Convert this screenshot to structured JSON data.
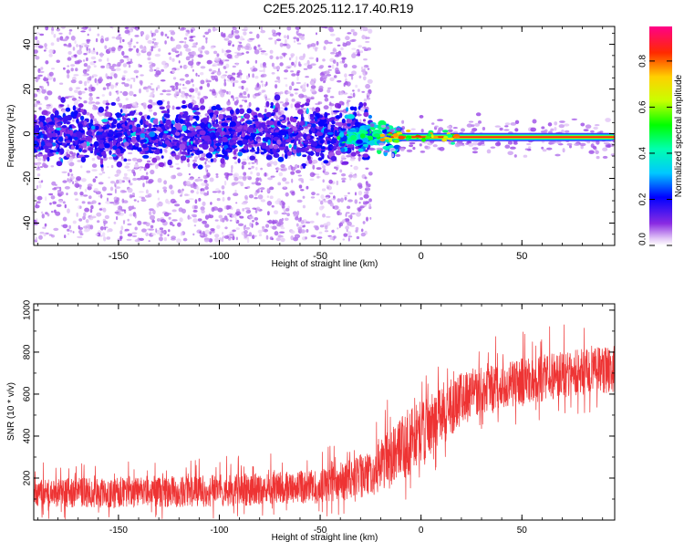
{
  "title": "C2E5.2025.112.17.40.R19",
  "chart_data": [
    {
      "type": "heatmap",
      "xlabel": "Height of straight line (km)",
      "ylabel": "Frequency (Hz)",
      "xlim": [
        -192,
        96
      ],
      "ylim": [
        -50,
        48
      ],
      "xticks": [
        -150,
        -100,
        -50,
        0,
        50
      ],
      "yticks": [
        -40,
        -20,
        0,
        20,
        40
      ],
      "colorbar": {
        "label": "Normalized spectral amplitude",
        "range": [
          0,
          0.95
        ],
        "ticks": [
          0.0,
          0.2,
          0.4,
          0.6,
          0.8
        ],
        "colormap": "rainbow"
      },
      "features": {
        "scatter_region_x": [
          -192,
          -25
        ],
        "scatter_freq_halfwidth_hz": 48,
        "core_band_halfwidth_hz": 10,
        "tonal_line_x": [
          -25,
          96
        ],
        "tonal_line_freq_hz": -1.5,
        "tonal_line_peak_amplitude": 0.85
      }
    },
    {
      "type": "line",
      "xlabel": "Height of straight line (km)",
      "ylabel": "SNR (10 * v/v)",
      "xlim": [
        -192,
        96
      ],
      "ylim": [
        0,
        1030
      ],
      "xticks": [
        -150,
        -100,
        -50,
        0,
        50
      ],
      "yticks": [
        200,
        400,
        600,
        800,
        1000
      ],
      "series": [
        {
          "color": "#ee3333",
          "trend": [
            {
              "x": -192,
              "mean": 130,
              "spread": 70
            },
            {
              "x": -150,
              "mean": 130,
              "spread": 70
            },
            {
              "x": -100,
              "mean": 140,
              "spread": 75
            },
            {
              "x": -50,
              "mean": 160,
              "spread": 80
            },
            {
              "x": -25,
              "mean": 220,
              "spread": 110
            },
            {
              "x": -10,
              "mean": 330,
              "spread": 160
            },
            {
              "x": 0,
              "mean": 420,
              "spread": 150
            },
            {
              "x": 10,
              "mean": 500,
              "spread": 150
            },
            {
              "x": 25,
              "mean": 600,
              "spread": 120
            },
            {
              "x": 50,
              "mean": 660,
              "spread": 110
            },
            {
              "x": 75,
              "mean": 700,
              "spread": 110
            },
            {
              "x": 96,
              "mean": 720,
              "spread": 110
            }
          ]
        }
      ]
    }
  ]
}
